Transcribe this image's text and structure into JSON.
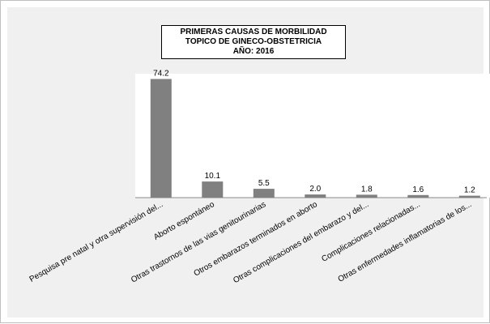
{
  "title_lines": [
    "PRIMERAS CAUSAS DE MORBILIDAD",
    "TOPICO DE GINECO-OBSTETRICIA",
    "AÑO: 2016"
  ],
  "chart_data": {
    "type": "bar",
    "title": "PRIMERAS CAUSAS DE MORBILIDAD TOPICO DE GINECO-OBSTETRICIA AÑO: 2016",
    "categories": [
      "Pesquisa pre natal y otra supervisión del...",
      "Aborto espontáneo",
      "Otras trastornos de las vias genitourinarias",
      "Otros embarazos terminados en aborto",
      "Otras complicaciones del embarazo y  del...",
      "Complicaciones relacionadas...",
      "Otras enfermedades inflamatorias de los..."
    ],
    "values": [
      74.2,
      10.1,
      5.5,
      2.0,
      1.8,
      1.6,
      1.2
    ],
    "data_labels": [
      "74.2",
      "10.1",
      "5.5",
      "2.0",
      "1.8",
      "1.6",
      "1.2"
    ],
    "ylim": [
      0,
      80
    ],
    "bar_color": "#808080",
    "grid": false,
    "legend": "none"
  }
}
